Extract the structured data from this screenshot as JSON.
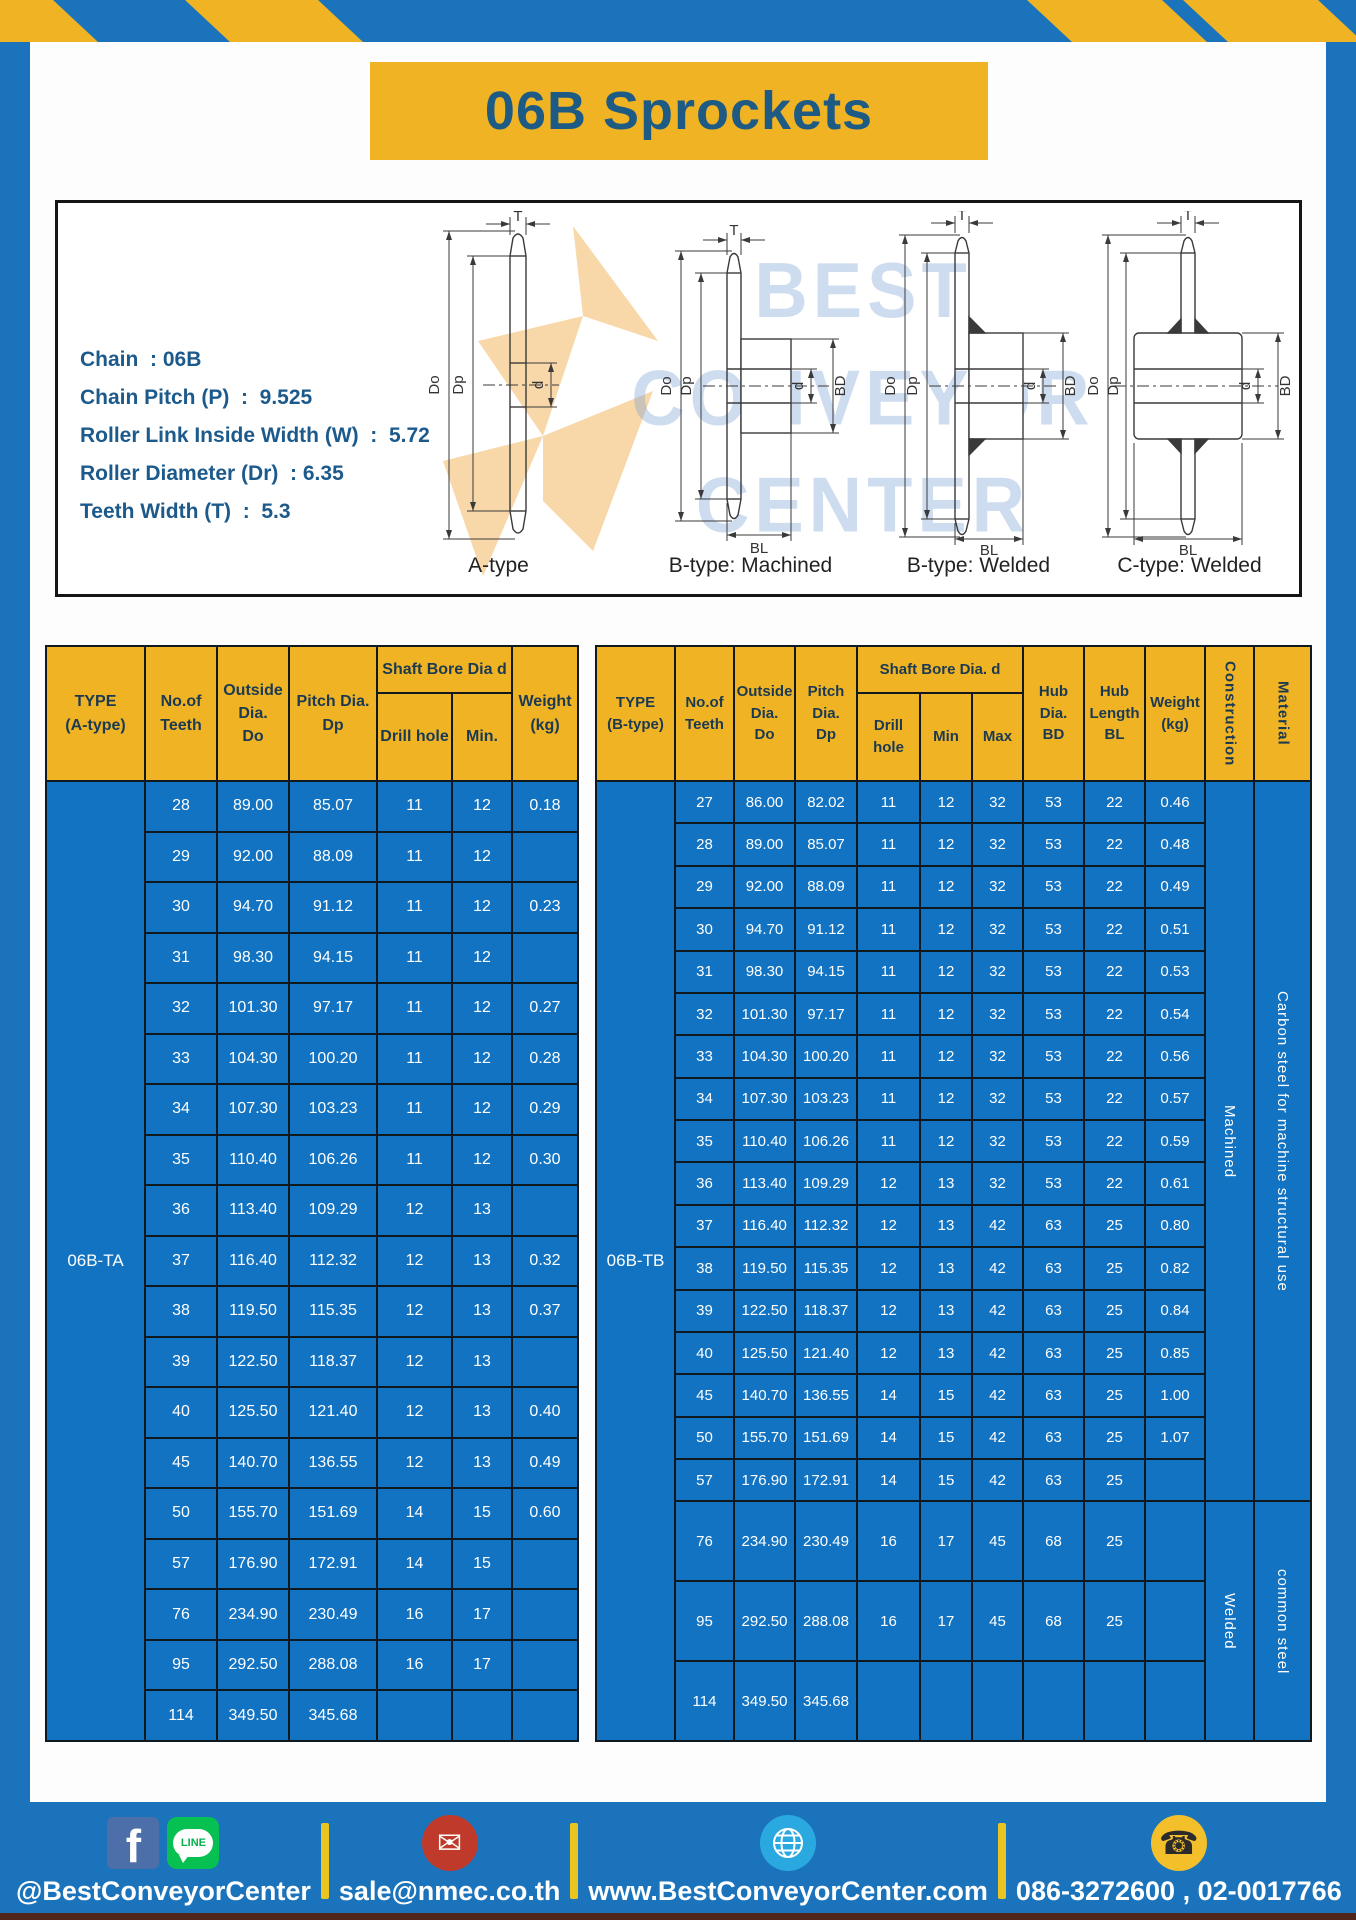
{
  "title": "06B Sprockets",
  "specs": [
    "Chain  : 06B",
    "Chain Pitch (P)  :  9.525",
    "Roller Link Inside Width (W)  :  5.72",
    "Roller Diameter (Dr)  : 6.35",
    "Teeth Width (T)  :  5.3"
  ],
  "watermark": {
    "lines": [
      "BEST",
      "CONVEYOR",
      "CENTER"
    ]
  },
  "diagram": {
    "labels": [
      "A-type",
      "B-type: Machined",
      "B-type: Welded",
      "C-type: Welded"
    ],
    "dims": {
      "T": "T",
      "Do": "Do",
      "Dp": "Dp",
      "d": "d",
      "BD": "BD",
      "BL": "BL"
    }
  },
  "tables": {
    "left": {
      "header": {
        "type": "TYPE\n(A-type)",
        "teeth": "No.of\nTeeth",
        "outside": "Outside\nDia.\nDo",
        "pitch": "Pitch Dia.\nDp",
        "shaft_bore": "Shaft Bore Dia d",
        "drill": "Drill hole",
        "min": "Min.",
        "weight": "Weight\n(kg)"
      },
      "type_label": "06B-TA",
      "rows": [
        [
          "28",
          "89.00",
          "85.07",
          "11",
          "12",
          "0.18"
        ],
        [
          "29",
          "92.00",
          "88.09",
          "11",
          "12",
          ""
        ],
        [
          "30",
          "94.70",
          "91.12",
          "11",
          "12",
          "0.23"
        ],
        [
          "31",
          "98.30",
          "94.15",
          "11",
          "12",
          ""
        ],
        [
          "32",
          "101.30",
          "97.17",
          "11",
          "12",
          "0.27"
        ],
        [
          "33",
          "104.30",
          "100.20",
          "11",
          "12",
          "0.28"
        ],
        [
          "34",
          "107.30",
          "103.23",
          "11",
          "12",
          "0.29"
        ],
        [
          "35",
          "110.40",
          "106.26",
          "11",
          "12",
          "0.30"
        ],
        [
          "36",
          "113.40",
          "109.29",
          "12",
          "13",
          ""
        ],
        [
          "37",
          "116.40",
          "112.32",
          "12",
          "13",
          "0.32"
        ],
        [
          "38",
          "119.50",
          "115.35",
          "12",
          "13",
          "0.37"
        ],
        [
          "39",
          "122.50",
          "118.37",
          "12",
          "13",
          ""
        ],
        [
          "40",
          "125.50",
          "121.40",
          "12",
          "13",
          "0.40"
        ],
        [
          "45",
          "140.70",
          "136.55",
          "12",
          "13",
          "0.49"
        ],
        [
          "50",
          "155.70",
          "151.69",
          "14",
          "15",
          "0.60"
        ],
        [
          "57",
          "176.90",
          "172.91",
          "14",
          "15",
          ""
        ],
        [
          "76",
          "234.90",
          "230.49",
          "16",
          "17",
          ""
        ],
        [
          "95",
          "292.50",
          "288.08",
          "16",
          "17",
          ""
        ],
        [
          "114",
          "349.50",
          "345.68",
          "",
          "",
          ""
        ]
      ]
    },
    "right": {
      "header": {
        "type": "TYPE\n(B-type)",
        "teeth": "No.of\nTeeth",
        "outside": "Outside\nDia.\nDo",
        "pitch": "Pitch\nDia.\nDp",
        "shaft_bore": "Shaft Bore Dia. d",
        "drill": "Drill hole",
        "min": "Min",
        "max": "Max",
        "hub_dia": "Hub\nDia.\nBD",
        "hub_len": "Hub\nLength\nBL",
        "weight": "Weight\n(kg)",
        "construction": "Construction",
        "material": "Material"
      },
      "type_label": "06B-TB",
      "rows": [
        [
          "27",
          "86.00",
          "82.02",
          "11",
          "12",
          "32",
          "53",
          "22",
          "0.46"
        ],
        [
          "28",
          "89.00",
          "85.07",
          "11",
          "12",
          "32",
          "53",
          "22",
          "0.48"
        ],
        [
          "29",
          "92.00",
          "88.09",
          "11",
          "12",
          "32",
          "53",
          "22",
          "0.49"
        ],
        [
          "30",
          "94.70",
          "91.12",
          "11",
          "12",
          "32",
          "53",
          "22",
          "0.51"
        ],
        [
          "31",
          "98.30",
          "94.15",
          "11",
          "12",
          "32",
          "53",
          "22",
          "0.53"
        ],
        [
          "32",
          "101.30",
          "97.17",
          "11",
          "12",
          "32",
          "53",
          "22",
          "0.54"
        ],
        [
          "33",
          "104.30",
          "100.20",
          "11",
          "12",
          "32",
          "53",
          "22",
          "0.56"
        ],
        [
          "34",
          "107.30",
          "103.23",
          "11",
          "12",
          "32",
          "53",
          "22",
          "0.57"
        ],
        [
          "35",
          "110.40",
          "106.26",
          "11",
          "12",
          "32",
          "53",
          "22",
          "0.59"
        ],
        [
          "36",
          "113.40",
          "109.29",
          "12",
          "13",
          "32",
          "53",
          "22",
          "0.61"
        ],
        [
          "37",
          "116.40",
          "112.32",
          "12",
          "13",
          "42",
          "63",
          "25",
          "0.80"
        ],
        [
          "38",
          "119.50",
          "115.35",
          "12",
          "13",
          "42",
          "63",
          "25",
          "0.82"
        ],
        [
          "39",
          "122.50",
          "118.37",
          "12",
          "13",
          "42",
          "63",
          "25",
          "0.84"
        ],
        [
          "40",
          "125.50",
          "121.40",
          "12",
          "13",
          "42",
          "63",
          "25",
          "0.85"
        ],
        [
          "45",
          "140.70",
          "136.55",
          "14",
          "15",
          "42",
          "63",
          "25",
          "1.00"
        ],
        [
          "50",
          "155.70",
          "151.69",
          "14",
          "15",
          "42",
          "63",
          "25",
          "1.07"
        ],
        [
          "57",
          "176.90",
          "172.91",
          "14",
          "15",
          "42",
          "63",
          "25",
          ""
        ],
        [
          "76",
          "234.90",
          "230.49",
          "16",
          "17",
          "45",
          "68",
          "25",
          ""
        ],
        [
          "95",
          "292.50",
          "288.08",
          "16",
          "17",
          "45",
          "68",
          "25",
          ""
        ],
        [
          "114",
          "349.50",
          "345.68",
          "",
          "",
          "",
          "",
          "",
          ""
        ]
      ],
      "construction_groups": [
        {
          "label": "Machined",
          "rows": 17
        },
        {
          "label": "Welded",
          "rows": 3
        }
      ],
      "material_groups": [
        {
          "label": "Carbon steel for machine structural use",
          "rows": 17
        },
        {
          "label": "common steel",
          "rows": 3
        }
      ]
    }
  },
  "footer": {
    "icons": {
      "facebook_glyph": "f",
      "line_label": "LINE",
      "email_glyph": "✉",
      "phone_glyph": "☎"
    },
    "items": [
      {
        "text": "@BestConveyorCenter"
      },
      {
        "text": "sale@nmec.co.th"
      },
      {
        "text": "www.BestConveyorCenter.com"
      },
      {
        "text": "086-3272600 , 02-0017766"
      }
    ]
  },
  "colors": {
    "blue": "#1b74bb",
    "yellow": "#f0b323",
    "navy": "#1d5a84",
    "cell_blue": "#1173c2"
  }
}
